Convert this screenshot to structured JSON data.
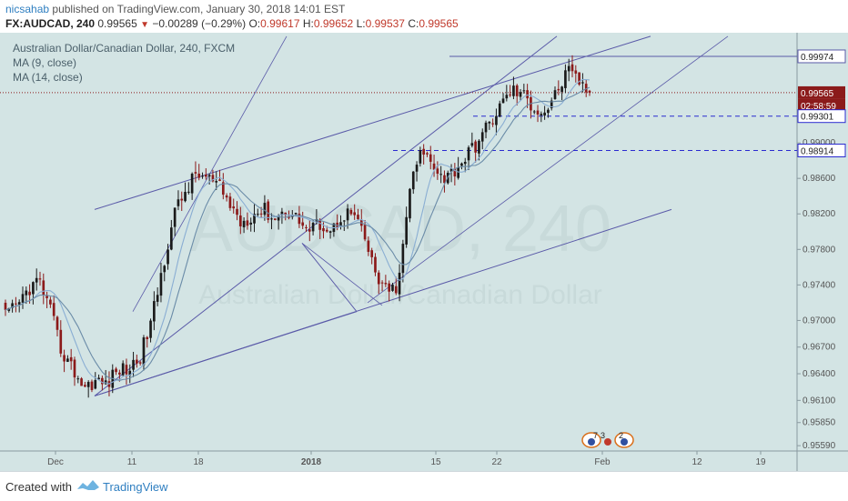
{
  "header": {
    "user": "nicsahab",
    "published_text": "published on TradingView.com, January 30, 2018 14:01 EST",
    "symbol": "FX:AUDCAD, 240",
    "last": "0.99565",
    "change": "−0.00289 (−0.29%)",
    "o_label": "O:",
    "o": "0.99617",
    "h_label": "H:",
    "h": "0.99652",
    "l_label": "L:",
    "l": "0.99537",
    "c_label": "C:",
    "c": "0.99565"
  },
  "legend": {
    "title": "Australian Dollar/Canadian Dollar, 240, FXCM",
    "ma1": "MA (9, close)",
    "ma2": "MA (14, close)"
  },
  "watermark": {
    "symbol": "AUDCAD, 240",
    "name": "Australian Dollar/Canadian Dollar"
  },
  "footer": {
    "created_with": "Created with",
    "brand": "TradingView"
  },
  "colors": {
    "background": "#d3e4e4",
    "up": "#1a1a1a",
    "down": "#8b1a1a",
    "ma9": "#8aaed3",
    "ma14": "#6b8ca8",
    "trendline": "#5a5aa8",
    "dashed": "#2a2ad0",
    "last_price": "#8b1a1a"
  },
  "chart_data": {
    "type": "candlestick",
    "title": "Australian Dollar/Canadian Dollar, 240, FXCM",
    "ylim": [
      0.9553,
      1.0024
    ],
    "y_ticks": [
      "0.95590",
      "0.95850",
      "0.96100",
      "0.96400",
      "0.96700",
      "0.97000",
      "0.97400",
      "0.97800",
      "0.98200",
      "0.98600",
      "0.99000"
    ],
    "x_ticks": [
      "Dec",
      "11",
      "18",
      "2018",
      "15",
      "22",
      "Feb",
      "12",
      "19"
    ],
    "price_labels": [
      {
        "text": "0.99974",
        "style": "line"
      },
      {
        "text": "0.99565",
        "style": "last"
      },
      {
        "text": "02:58:59",
        "style": "timer"
      },
      {
        "text": "0.99301",
        "style": "dashed"
      },
      {
        "text": "0.98914",
        "style": "dashed"
      }
    ],
    "anchors": [
      0.9705,
      0.9715,
      0.9735,
      0.9745,
      0.971,
      0.9665,
      0.9645,
      0.9625,
      0.9632,
      0.9628,
      0.9645,
      0.9645,
      0.966,
      0.97,
      0.976,
      0.982,
      0.9845,
      0.9865,
      0.986,
      0.985,
      0.983,
      0.981,
      0.982,
      0.9825,
      0.9815,
      0.9825,
      0.9815,
      0.98,
      0.981,
      0.98,
      0.982,
      0.982,
      0.979,
      0.975,
      0.973,
      0.974,
      0.985,
      0.989,
      0.988,
      0.986,
      0.987,
      0.9885,
      0.99,
      0.992,
      0.994,
      0.996,
      0.9955,
      0.994,
      0.9935,
      0.9955,
      0.998,
      0.997,
      0.9957
    ],
    "candle_count": 170,
    "trendlines": [
      {
        "name": "upper-channel",
        "points": [
          [
            "Dec 8",
            0.9825
          ],
          [
            "Feb 5",
            1.002
          ]
        ]
      },
      {
        "name": "lower-channel",
        "points": [
          [
            "Dec 8",
            0.9615
          ],
          [
            "Feb 10",
            0.9825
          ]
        ]
      },
      {
        "name": "rising-line",
        "points": [
          [
            "Dec 8",
            0.9615
          ],
          [
            "Jan 24",
            1.002
          ]
        ]
      },
      {
        "name": "parallel-line",
        "points": [
          [
            "Jan 11",
            0.972
          ],
          [
            "Feb 17",
            1.002
          ]
        ]
      },
      {
        "name": "upper-thin",
        "points": [
          [
            "Dec 11",
            0.971
          ],
          [
            "Dec 27",
            1.002
          ]
        ]
      }
    ]
  }
}
